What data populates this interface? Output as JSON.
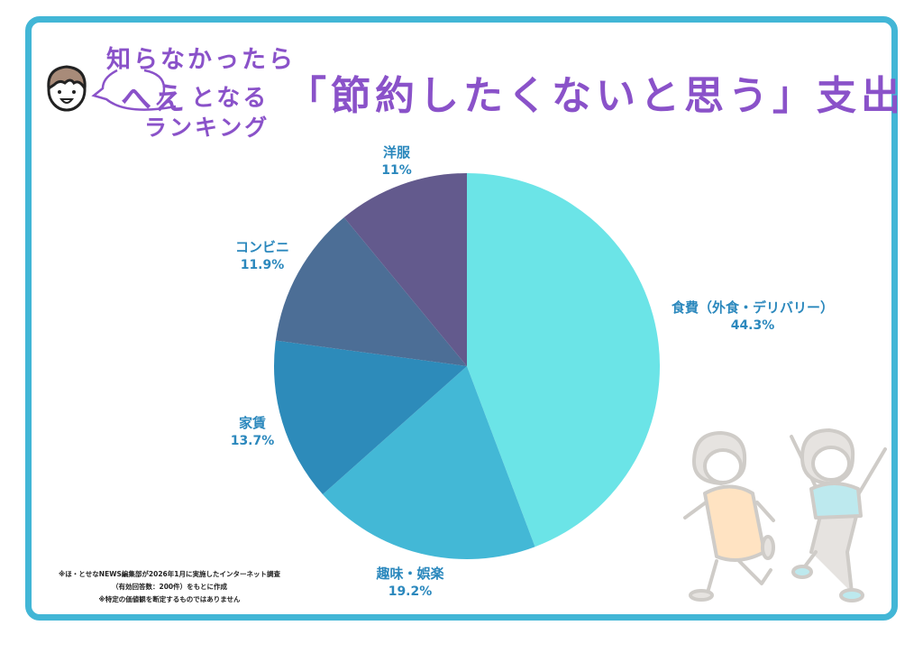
{
  "header": {
    "line1": "知らなかったら",
    "line2_emphasis": "へえ",
    "line2_rest": "となる",
    "line3": "ランキング",
    "main_title": "「節約したくないと思う」支出"
  },
  "footnote": {
    "line1": "※ほ・とせなNEWS編集部が2026年1月に実施したインターネット調査",
    "line2": "（有効回答数：200件）をもとに作成",
    "line3": "※特定の価値観を断定するものではありません"
  },
  "colors": {
    "frame": "#42b6d6",
    "title": "#8a52c9",
    "label": "#2b88bd"
  },
  "chart_data": {
    "type": "pie",
    "title": "「節約したくないと思う」支出",
    "start_angle": "12 o'clock, clockwise",
    "slices": [
      {
        "label": "食費（外食・デリバリー）",
        "value": 44.3,
        "display": "44.3%",
        "color": "#6be4e7"
      },
      {
        "label": "趣味・娯楽",
        "value": 19.2,
        "display": "19.2%",
        "color": "#43b8d6"
      },
      {
        "label": "家賃",
        "value": 13.7,
        "display": "13.7%",
        "color": "#2d8bba"
      },
      {
        "label": "コンビニ",
        "value": 11.9,
        "display": "11.9%",
        "color": "#4c6e96"
      },
      {
        "label": "洋服",
        "value": 11.0,
        "display": "11%",
        "color": "#635a8d"
      }
    ],
    "legend": "none (direct labels)"
  }
}
